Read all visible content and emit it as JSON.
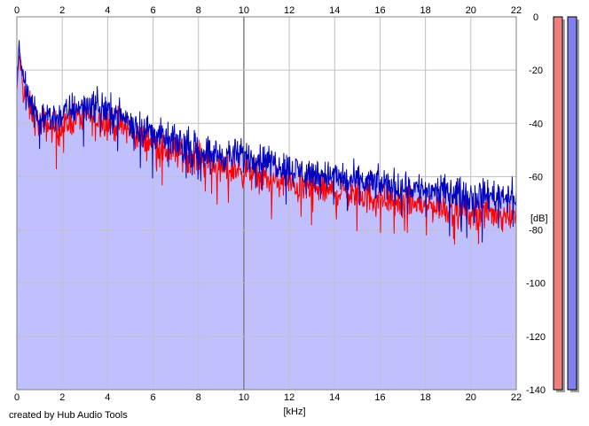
{
  "credit": "created by Hub Audio Tools",
  "chart_data": {
    "type": "area",
    "xlabel": "[kHz]",
    "ylabel": "[dB]",
    "x_ticks": [
      "0",
      "2",
      "4",
      "6",
      "8",
      "10",
      "12",
      "14",
      "16",
      "18",
      "20",
      "22"
    ],
    "y_ticks": [
      "0",
      "-20",
      "-40",
      "-60",
      "-80",
      "-100",
      "-120",
      "-140"
    ],
    "xlim": [
      0,
      22
    ],
    "ylim": [
      -140,
      0
    ],
    "grid": true,
    "x_axis_position": "top-and-bottom",
    "y_axis_position": "right",
    "colors": {
      "area_fill": "#c0c0ff",
      "background": "#ffffff",
      "grid": "#c0c0c0",
      "grid_major": "#808080",
      "channel_left": "#ff0000",
      "channel_right": "#0000c0",
      "meter_left": "#f08080",
      "meter_right": "#8080f0"
    },
    "series": [
      {
        "x": [
          0,
          0.1,
          0.2,
          0.3,
          0.5,
          0.8,
          1.0,
          1.5,
          2.0,
          2.5,
          3.0,
          3.5,
          4.0,
          4.5,
          5.0,
          5.5,
          6.0,
          6.5,
          7.0,
          7.5,
          8.0,
          8.5,
          9.0,
          9.5,
          10.0,
          10.5,
          11.0,
          11.5,
          12.0,
          12.5,
          13.0,
          13.5,
          14.0,
          14.5,
          15.0,
          15.5,
          16.0,
          16.5,
          17.0,
          17.5,
          18.0,
          18.5,
          19.0,
          19.5,
          20.0,
          20.5,
          21.0,
          21.5,
          22.0
        ],
        "values": [
          -28,
          -14,
          -22,
          -27,
          -33,
          -38,
          -40,
          -41,
          -42,
          -38,
          -37,
          -38,
          -40,
          -41,
          -43,
          -46,
          -47,
          -50,
          -51,
          -52,
          -53,
          -55,
          -57,
          -57,
          -58,
          -59,
          -61,
          -62,
          -63,
          -64,
          -64,
          -65,
          -66,
          -66,
          -67,
          -68,
          -68,
          -69,
          -70,
          -70,
          -71,
          -71,
          -72,
          -72,
          -73,
          -73,
          -74,
          -74,
          -74
        ]
      },
      {
        "x": [
          0,
          0.1,
          0.2,
          0.3,
          0.5,
          0.8,
          1.0,
          1.5,
          2.0,
          2.5,
          3.0,
          3.5,
          4.0,
          4.5,
          5.0,
          5.5,
          6.0,
          6.5,
          7.0,
          7.5,
          8.0,
          8.5,
          9.0,
          9.5,
          10.0,
          10.5,
          11.0,
          11.5,
          12.0,
          12.5,
          13.0,
          13.5,
          14.0,
          14.5,
          15.0,
          15.5,
          16.0,
          16.5,
          17.0,
          17.5,
          18.0,
          18.5,
          19.0,
          19.5,
          20.0,
          20.5,
          21.0,
          21.5,
          22.0
        ],
        "values": [
          -26,
          -10,
          -18,
          -24,
          -31,
          -36,
          -38,
          -38,
          -37,
          -34,
          -33,
          -33,
          -35,
          -37,
          -39,
          -42,
          -43,
          -46,
          -47,
          -48,
          -50,
          -51,
          -52,
          -52,
          -52,
          -53,
          -54,
          -55,
          -57,
          -58,
          -59,
          -59,
          -60,
          -61,
          -62,
          -62,
          -63,
          -63,
          -64,
          -64,
          -65,
          -65,
          -66,
          -66,
          -67,
          -67,
          -67,
          -67,
          -67
        ]
      }
    ],
    "meters": [
      {
        "value": -140
      },
      {
        "value": -140
      }
    ]
  }
}
